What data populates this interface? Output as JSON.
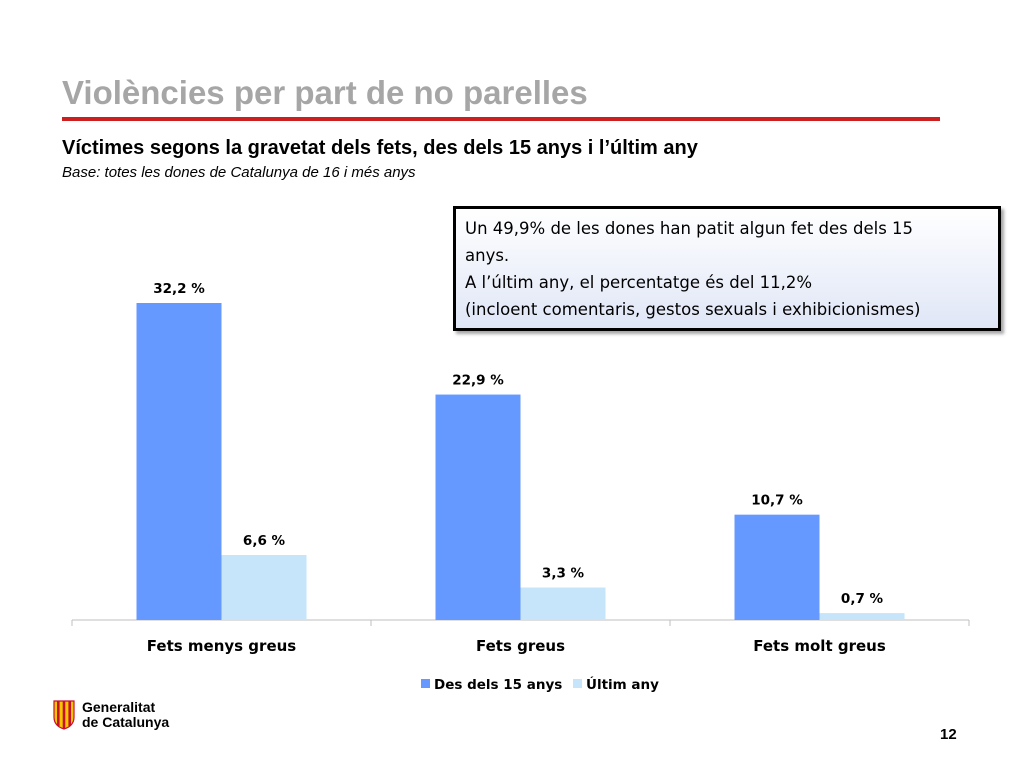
{
  "page": {
    "title": "Violències per part de no parelles",
    "subtitle": "Víctimes segons la gravetat dels fets, des dels 15 anys i l’últim any",
    "base": "Base: totes les dones de Catalunya de 16 i més anys",
    "page_number": "12"
  },
  "callout": {
    "lines": [
      "Un 49,9% de les dones han patit algun fet des dels 15",
      "anys.",
      "A l’últim any, el percentatge és del 11,2%",
      "(incloent comentaris, gestos sexuals i exhibicionismes)"
    ]
  },
  "logo": {
    "line1": "Generalitat",
    "line2": "de Catalunya"
  },
  "chart_data": {
    "type": "bar",
    "categories": [
      "Fets menys greus",
      "Fets greus",
      "Fets molt greus"
    ],
    "series": [
      {
        "name": "Des dels 15 anys",
        "values": [
          32.2,
          22.9,
          10.7
        ],
        "labels": [
          "32,2 %",
          "22,9 %",
          "10,7 %"
        ],
        "color": "#6699ff"
      },
      {
        "name": "Últim any",
        "values": [
          6.6,
          3.3,
          0.7
        ],
        "labels": [
          "6,6 %",
          "3,3 %",
          "0,7 %"
        ],
        "color": "#c6e4fa"
      }
    ],
    "ylim": [
      0,
      40
    ],
    "legend": "bottom",
    "grid": false
  }
}
